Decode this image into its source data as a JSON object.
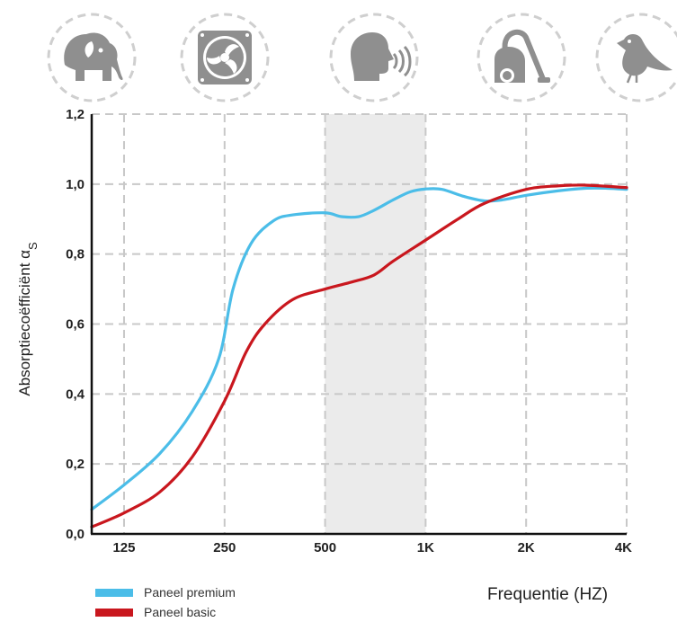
{
  "chart_data": {
    "type": "line",
    "title": "",
    "xlabel": "Frequentie (HZ)",
    "ylabel": "Absorptiecoëfficiënt α",
    "ylabel_subscript": "S",
    "x_scale": "log",
    "x_ticks": [
      {
        "value": 125,
        "label": "125"
      },
      {
        "value": 250,
        "label": "250"
      },
      {
        "value": 500,
        "label": "500"
      },
      {
        "value": 1000,
        "label": "1K"
      },
      {
        "value": 2000,
        "label": "2K"
      },
      {
        "value": 4000,
        "label": "4K"
      }
    ],
    "y_ticks": [
      "0,0",
      "0,2",
      "0,4",
      "0,6",
      "0,8",
      "1,0",
      "1,2"
    ],
    "xlim": [
      100,
      4000
    ],
    "ylim": [
      0,
      1.2
    ],
    "grid": true,
    "highlight_band": [
      500,
      1000
    ],
    "legend_position": "bottom-left",
    "series": [
      {
        "name": "Paneel premium",
        "color": "#4bbde8",
        "points": [
          [
            100,
            0.07
          ],
          [
            125,
            0.14
          ],
          [
            160,
            0.23
          ],
          [
            200,
            0.35
          ],
          [
            240,
            0.5
          ],
          [
            265,
            0.7
          ],
          [
            300,
            0.83
          ],
          [
            350,
            0.895
          ],
          [
            400,
            0.912
          ],
          [
            500,
            0.918
          ],
          [
            560,
            0.907
          ],
          [
            630,
            0.907
          ],
          [
            700,
            0.925
          ],
          [
            800,
            0.955
          ],
          [
            900,
            0.978
          ],
          [
            1000,
            0.986
          ],
          [
            1120,
            0.985
          ],
          [
            1300,
            0.965
          ],
          [
            1500,
            0.952
          ],
          [
            1700,
            0.955
          ],
          [
            2000,
            0.968
          ],
          [
            2500,
            0.981
          ],
          [
            3000,
            0.988
          ],
          [
            3500,
            0.988
          ],
          [
            4000,
            0.985
          ]
        ]
      },
      {
        "name": "Paneel basic",
        "color": "#c9171e",
        "points": [
          [
            100,
            0.02
          ],
          [
            125,
            0.06
          ],
          [
            160,
            0.12
          ],
          [
            200,
            0.22
          ],
          [
            250,
            0.38
          ],
          [
            290,
            0.52
          ],
          [
            330,
            0.6
          ],
          [
            400,
            0.67
          ],
          [
            500,
            0.7
          ],
          [
            600,
            0.72
          ],
          [
            700,
            0.74
          ],
          [
            800,
            0.78
          ],
          [
            1000,
            0.84
          ],
          [
            1250,
            0.9
          ],
          [
            1500,
            0.945
          ],
          [
            2000,
            0.985
          ],
          [
            2500,
            0.995
          ],
          [
            3000,
            0.997
          ],
          [
            4000,
            0.99
          ]
        ]
      }
    ]
  },
  "icons": [
    {
      "name": "elephant-icon"
    },
    {
      "name": "fan-icon"
    },
    {
      "name": "speaking-person-icon"
    },
    {
      "name": "vacuum-cleaner-icon"
    },
    {
      "name": "bird-icon"
    }
  ],
  "colors": {
    "icon_fill": "#8f8f8f",
    "icon_circle": "#cfcfcf",
    "grid": "#c8c8c8",
    "band": "#ebebeb",
    "axis": "#111111"
  }
}
